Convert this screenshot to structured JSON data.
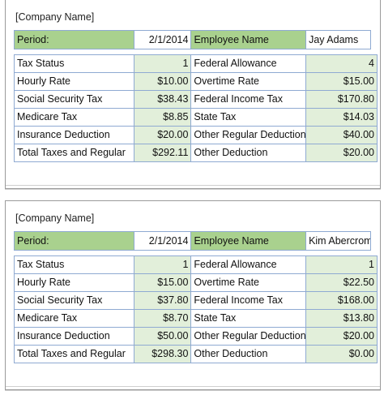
{
  "stubs": [
    {
      "company": "[Company Name]",
      "period_label": "Period:",
      "period_value": "2/1/2014",
      "employee_label": "Employee Name",
      "employee_value": "Jay Adams",
      "rows": [
        {
          "l_label": "Tax Status",
          "l_value": "1",
          "r_label": "Federal Allowance",
          "r_value": "4"
        },
        {
          "l_label": "Hourly Rate",
          "l_value": "$10.00",
          "r_label": "Overtime Rate",
          "r_value": "$15.00"
        },
        {
          "l_label": "Social Security Tax",
          "l_value": "$38.43",
          "r_label": "Federal Income Tax",
          "r_value": "$170.80"
        },
        {
          "l_label": "Medicare Tax",
          "l_value": "$8.85",
          "r_label": "State Tax",
          "r_value": "$14.03"
        },
        {
          "l_label": "Insurance Deduction",
          "l_value": "$20.00",
          "r_label": "Other Regular Deduction",
          "r_value": "$40.00"
        },
        {
          "l_label": "Total Taxes and Regular",
          "l_value": "$292.11",
          "r_label": "Other Deduction",
          "r_value": "$20.00"
        }
      ]
    },
    {
      "company": "[Company Name]",
      "period_label": "Period:",
      "period_value": "2/1/2014",
      "employee_label": "Employee Name",
      "employee_value": "Kim Abercrom",
      "rows": [
        {
          "l_label": "Tax Status",
          "l_value": "1",
          "r_label": "Federal Allowance",
          "r_value": "1"
        },
        {
          "l_label": "Hourly Rate",
          "l_value": "$15.00",
          "r_label": "Overtime Rate",
          "r_value": "$22.50"
        },
        {
          "l_label": "Social Security Tax",
          "l_value": "$37.80",
          "r_label": "Federal Income Tax",
          "r_value": "$168.00"
        },
        {
          "l_label": "Medicare Tax",
          "l_value": "$8.70",
          "r_label": "State Tax",
          "r_value": "$13.80"
        },
        {
          "l_label": "Insurance Deduction",
          "l_value": "$50.00",
          "r_label": "Other Regular Deduction",
          "r_value": "$20.00"
        },
        {
          "l_label": "Total Taxes and Regular",
          "l_value": "$298.30",
          "r_label": "Other Deduction",
          "r_value": "$0.00"
        }
      ]
    }
  ]
}
